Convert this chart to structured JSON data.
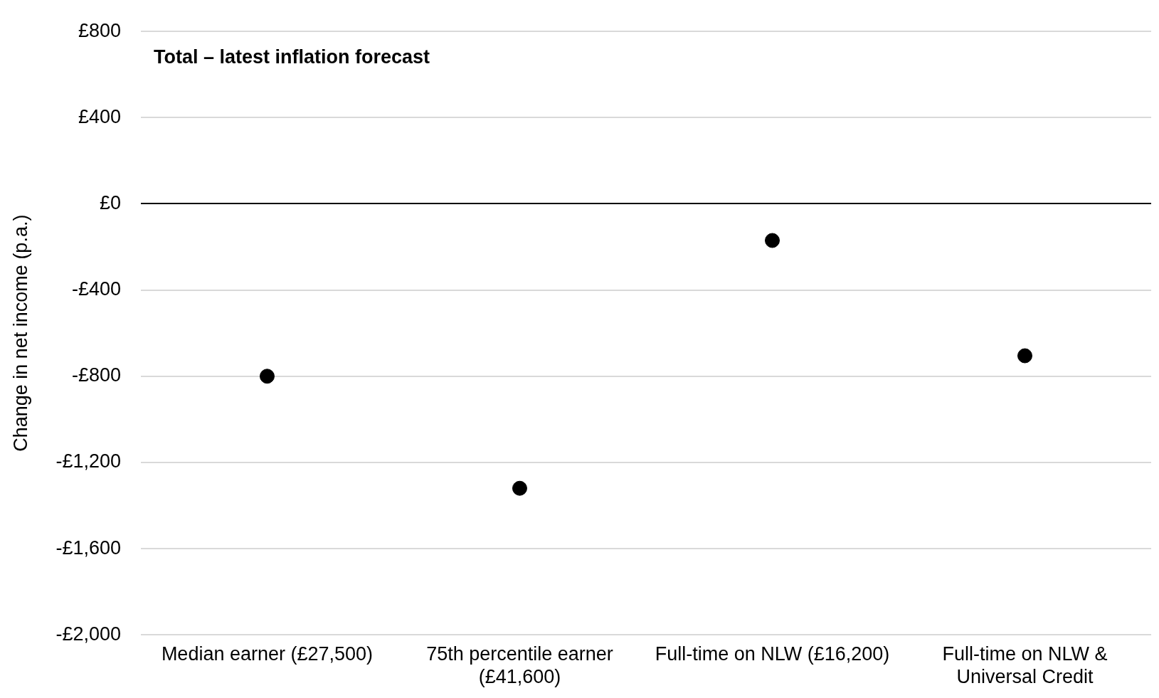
{
  "chart_data": {
    "type": "scatter",
    "title": "Total – latest inflation forecast",
    "ylabel": "Change in net income (p.a.)",
    "categories": [
      "Median earner (£27,500)",
      "75th percentile earner (£41,600)",
      "Full-time on NLW (£16,200)",
      "Full-time on NLW & Universal Credit"
    ],
    "values": [
      -800,
      -1320,
      -170,
      -705
    ],
    "color": "#000000",
    "marker": "circle",
    "ylim": [
      -2000,
      800
    ],
    "yticks": [
      {
        "value": -2000,
        "label": "-£2,000"
      },
      {
        "value": -1600,
        "label": "-£1,600"
      },
      {
        "value": -1200,
        "label": "-£1,200"
      },
      {
        "value": -800,
        "label": "-£800"
      },
      {
        "value": -400,
        "label": "-£400"
      },
      {
        "value": 0,
        "label": "£0"
      },
      {
        "value": 400,
        "label": "£400"
      },
      {
        "value": 800,
        "label": "£800"
      }
    ],
    "grid": "y",
    "legend": false
  }
}
